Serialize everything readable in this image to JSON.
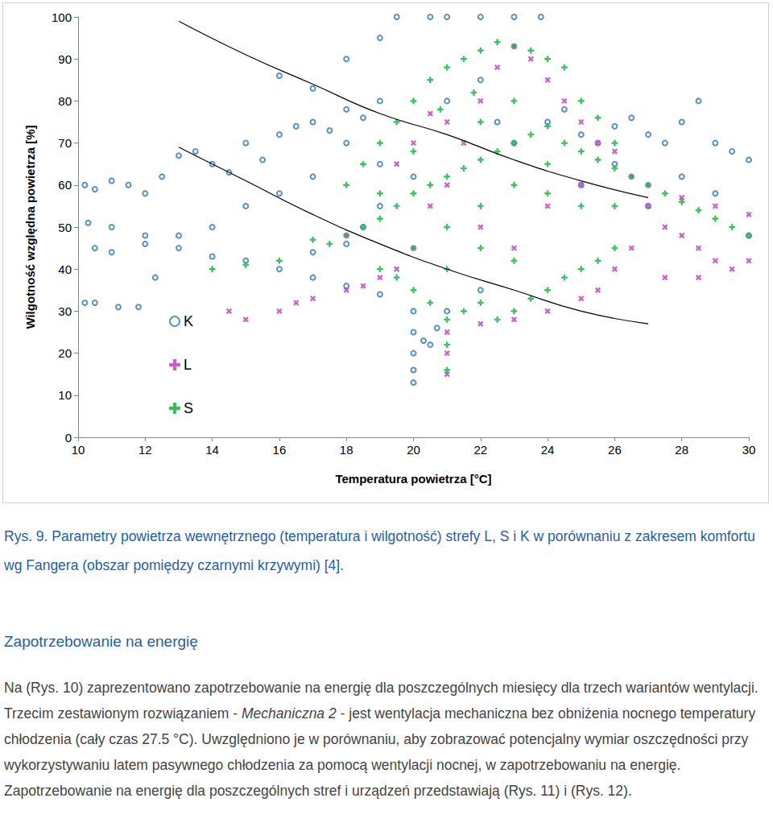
{
  "chart_data": {
    "type": "scatter",
    "x_label": "Temperatura powietrza [°C]",
    "y_label": "Wilgotność względna powietrza [%]",
    "xlim": [
      10,
      30
    ],
    "xticks": [
      10,
      12,
      14,
      16,
      18,
      20,
      22,
      24,
      26,
      28,
      30
    ],
    "ylim": [
      0,
      100
    ],
    "yticks": [
      0,
      10,
      20,
      30,
      40,
      50,
      60,
      70,
      80,
      90,
      100
    ],
    "grid": false,
    "legend": "lower left",
    "series": [
      {
        "name": "K",
        "color": "#2e75b6",
        "marker": "circle",
        "values": [
          [
            10.2,
            60
          ],
          [
            10.5,
            59
          ],
          [
            11,
            61
          ],
          [
            11.5,
            60
          ],
          [
            12,
            58
          ],
          [
            12.5,
            62
          ],
          [
            13,
            67
          ],
          [
            13.5,
            68
          ],
          [
            14,
            65
          ],
          [
            14.5,
            63
          ],
          [
            15,
            70
          ],
          [
            15.5,
            66
          ],
          [
            16,
            72
          ],
          [
            16.5,
            74
          ],
          [
            17,
            75
          ],
          [
            17.5,
            73
          ],
          [
            18,
            78
          ],
          [
            18.5,
            76
          ],
          [
            19,
            80
          ],
          [
            16,
            58
          ],
          [
            17,
            62
          ],
          [
            15,
            55
          ],
          [
            14,
            50
          ],
          [
            13,
            48
          ],
          [
            12,
            48
          ],
          [
            11,
            50
          ],
          [
            10.3,
            51
          ],
          [
            10.5,
            45
          ],
          [
            11,
            44
          ],
          [
            12,
            46
          ],
          [
            13,
            45
          ],
          [
            14,
            43
          ],
          [
            15,
            42
          ],
          [
            16,
            40
          ],
          [
            17,
            38
          ],
          [
            18,
            36
          ],
          [
            19,
            34
          ],
          [
            16,
            86
          ],
          [
            17,
            83
          ],
          [
            18,
            90
          ],
          [
            19.5,
            100
          ],
          [
            20.5,
            100
          ],
          [
            21,
            100
          ],
          [
            22,
            100
          ],
          [
            23,
            100
          ],
          [
            23.8,
            100
          ],
          [
            19,
            95
          ],
          [
            20,
            13
          ],
          [
            20,
            16
          ],
          [
            20,
            20
          ],
          [
            20,
            25
          ],
          [
            20,
            30
          ],
          [
            20.3,
            23
          ],
          [
            20.5,
            22
          ],
          [
            20.7,
            26
          ],
          [
            21,
            30
          ],
          [
            22,
            35
          ],
          [
            24,
            75
          ],
          [
            24.5,
            78
          ],
          [
            25,
            72
          ],
          [
            25.5,
            70
          ],
          [
            26,
            74
          ],
          [
            26.5,
            76
          ],
          [
            27,
            72
          ],
          [
            27.5,
            70
          ],
          [
            28,
            75
          ],
          [
            28.5,
            80
          ],
          [
            29,
            70
          ],
          [
            29.5,
            68
          ],
          [
            30,
            66
          ],
          [
            28,
            62
          ],
          [
            29,
            58
          ],
          [
            30,
            48
          ],
          [
            27,
            55
          ],
          [
            26,
            65
          ],
          [
            25,
            60
          ],
          [
            10.2,
            32
          ],
          [
            10.5,
            32
          ],
          [
            11.2,
            31
          ],
          [
            11.8,
            31
          ],
          [
            12.3,
            38
          ],
          [
            17,
            44
          ],
          [
            18,
            46
          ],
          [
            18.5,
            50
          ],
          [
            19,
            55
          ],
          [
            21,
            80
          ],
          [
            22,
            85
          ],
          [
            22.5,
            75
          ],
          [
            23,
            70
          ],
          [
            20,
            62
          ],
          [
            19,
            65
          ],
          [
            18,
            70
          ]
        ]
      },
      {
        "name": "L",
        "color": "#c54bc5",
        "marker": "x",
        "values": [
          [
            14.5,
            30
          ],
          [
            15,
            28
          ],
          [
            16,
            30
          ],
          [
            16.5,
            32
          ],
          [
            17,
            33
          ],
          [
            18,
            35
          ],
          [
            18.5,
            36
          ],
          [
            19,
            38
          ],
          [
            19.5,
            40
          ],
          [
            20,
            45
          ],
          [
            20.5,
            55
          ],
          [
            21,
            15
          ],
          [
            21,
            20
          ],
          [
            21,
            25
          ],
          [
            21,
            60
          ],
          [
            21.5,
            70
          ],
          [
            22,
            80
          ],
          [
            22.5,
            88
          ],
          [
            23,
            93
          ],
          [
            23.5,
            90
          ],
          [
            24,
            85
          ],
          [
            24.5,
            80
          ],
          [
            25,
            75
          ],
          [
            25.5,
            70
          ],
          [
            26,
            68
          ],
          [
            26.5,
            62
          ],
          [
            27,
            55
          ],
          [
            27.5,
            50
          ],
          [
            28,
            48
          ],
          [
            28.5,
            45
          ],
          [
            29,
            42
          ],
          [
            29.5,
            40
          ],
          [
            30,
            42
          ],
          [
            30,
            53
          ],
          [
            29,
            55
          ],
          [
            28,
            57
          ],
          [
            27,
            60
          ],
          [
            26,
            40
          ],
          [
            25.5,
            35
          ],
          [
            25,
            33
          ],
          [
            24,
            30
          ],
          [
            23,
            28
          ],
          [
            22,
            27
          ],
          [
            21,
            75
          ],
          [
            20.5,
            77
          ],
          [
            22,
            50
          ],
          [
            23,
            45
          ],
          [
            24,
            55
          ],
          [
            25,
            60
          ],
          [
            19.5,
            65
          ],
          [
            20,
            70
          ],
          [
            26.5,
            45
          ],
          [
            27.5,
            38
          ],
          [
            28.5,
            38
          ],
          [
            18,
            48
          ]
        ]
      },
      {
        "name": "S",
        "color": "#1fb84a",
        "marker": "plus",
        "values": [
          [
            17,
            47
          ],
          [
            17.5,
            46
          ],
          [
            18,
            48
          ],
          [
            18.5,
            50
          ],
          [
            19,
            52
          ],
          [
            19.5,
            55
          ],
          [
            20,
            58
          ],
          [
            20.5,
            60
          ],
          [
            21,
            62
          ],
          [
            21.5,
            64
          ],
          [
            22,
            66
          ],
          [
            22.5,
            68
          ],
          [
            23,
            70
          ],
          [
            23.5,
            72
          ],
          [
            24,
            74
          ],
          [
            24.5,
            70
          ],
          [
            25,
            68
          ],
          [
            25.5,
            66
          ],
          [
            26,
            64
          ],
          [
            26.5,
            62
          ],
          [
            27,
            60
          ],
          [
            27.5,
            58
          ],
          [
            28,
            56
          ],
          [
            28.5,
            54
          ],
          [
            29,
            52
          ],
          [
            29.5,
            50
          ],
          [
            30,
            48
          ],
          [
            18,
            60
          ],
          [
            18.5,
            65
          ],
          [
            19,
            70
          ],
          [
            19.5,
            75
          ],
          [
            20,
            80
          ],
          [
            20.5,
            85
          ],
          [
            21,
            88
          ],
          [
            21.5,
            90
          ],
          [
            22,
            92
          ],
          [
            22.5,
            94
          ],
          [
            23,
            93
          ],
          [
            23.5,
            92
          ],
          [
            24,
            90
          ],
          [
            24.5,
            88
          ],
          [
            25,
            80
          ],
          [
            25.5,
            76
          ],
          [
            26,
            70
          ],
          [
            19,
            40
          ],
          [
            19.5,
            38
          ],
          [
            20,
            35
          ],
          [
            20.5,
            32
          ],
          [
            21,
            16
          ],
          [
            21,
            22
          ],
          [
            21,
            28
          ],
          [
            21.5,
            30
          ],
          [
            22,
            32
          ],
          [
            22.5,
            28
          ],
          [
            23,
            30
          ],
          [
            23.5,
            33
          ],
          [
            24,
            35
          ],
          [
            24.5,
            38
          ],
          [
            25,
            40
          ],
          [
            25.5,
            42
          ],
          [
            26,
            45
          ],
          [
            20,
            45
          ],
          [
            21,
            50
          ],
          [
            22,
            55
          ],
          [
            23,
            60
          ],
          [
            24,
            58
          ],
          [
            25,
            55
          ],
          [
            22,
            45
          ],
          [
            23,
            42
          ],
          [
            21,
            40
          ],
          [
            22,
            75
          ],
          [
            23,
            80
          ],
          [
            24,
            65
          ],
          [
            20,
            68
          ],
          [
            19,
            58
          ],
          [
            26,
            55
          ],
          [
            20.8,
            78
          ],
          [
            21.8,
            82
          ],
          [
            16,
            42
          ],
          [
            15,
            41
          ],
          [
            14,
            40
          ]
        ]
      },
      {
        "type": "line",
        "color": "#000000",
        "marker": "none",
        "values": [
          [
            13,
            99
          ],
          [
            15,
            91
          ],
          [
            17,
            84
          ],
          [
            19,
            77
          ],
          [
            21,
            72
          ],
          [
            23,
            66
          ],
          [
            25,
            61
          ],
          [
            27,
            57
          ]
        ]
      },
      {
        "type": "line",
        "color": "#000000",
        "marker": "none",
        "values": [
          [
            13,
            69
          ],
          [
            15,
            61
          ],
          [
            17,
            53
          ],
          [
            19,
            46
          ],
          [
            21,
            40
          ],
          [
            23,
            35
          ],
          [
            25,
            30
          ],
          [
            27,
            27
          ]
        ]
      }
    ]
  },
  "caption": "Rys. 9. Parametry powietrza wewnętrznego (temperatura i wilgotność) strefy L, S i K w porównaniu z zakresem komfortu wg Fangera (obszar pomiędzy czarnymi krzywymi) [4].",
  "heading": "Zapotrzebowanie na energię",
  "paragraph": [
    "Na (Rys. 10) zaprezentowano zapotrzebowanie na energię dla poszczególnych miesięcy dla trzech wariantów wentylacji. Trzecim zestawionym rozwiązaniem - ",
    "Mechaniczna 2",
    " - jest wentylacja mechaniczna bez obniżenia nocnego temperatury chłodzenia (cały czas 27.5 °C). Uwzględniono je w porównaniu, aby zobrazować potencjalny wymiar oszczędności przy wykorzystywaniu latem pasywnego chłodzenia za pomocą wentylacji nocnej, w zapotrzebowaniu na energię. Zapotrzebowanie na energię dla poszczególnych stref i urządzeń przedstawiają (Rys. 11) i (Rys. 12)."
  ]
}
